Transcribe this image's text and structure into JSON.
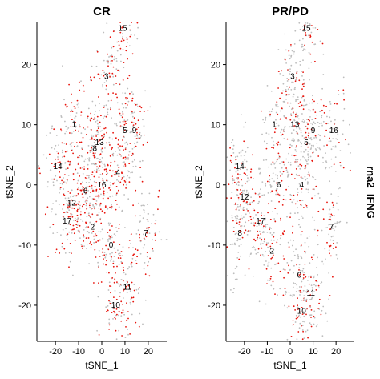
{
  "chart_data": [
    {
      "type": "scatter",
      "title": "CR",
      "xlabel": "tSNE_1",
      "ylabel": "tSNE_2",
      "xlim": [
        -28,
        28
      ],
      "ylim": [
        -26,
        27
      ],
      "xticks": [
        -20,
        -10,
        0,
        10,
        20
      ],
      "yticks": [
        -20,
        -10,
        0,
        10,
        20
      ],
      "xtick_labels": [
        "-20",
        "-10",
        "0",
        "10",
        "20"
      ],
      "ytick_labels": [
        "-20",
        "-10",
        "0",
        "10",
        "20"
      ],
      "point_colors": {
        "low": "#bdbdbd",
        "high": "#e8140c"
      },
      "clusters": [
        {
          "label": "0",
          "x": 4,
          "y": -10
        },
        {
          "label": "1",
          "x": -12,
          "y": 10
        },
        {
          "label": "2",
          "x": -4,
          "y": -7
        },
        {
          "label": "3",
          "x": 2,
          "y": 18
        },
        {
          "label": "4",
          "x": 7,
          "y": 2
        },
        {
          "label": "5",
          "x": 10,
          "y": 9
        },
        {
          "label": "6",
          "x": -7,
          "y": -1
        },
        {
          "label": "7",
          "x": 19,
          "y": -8
        },
        {
          "label": "8",
          "x": -3,
          "y": 6
        },
        {
          "label": "9",
          "x": 14,
          "y": 9
        },
        {
          "label": "10",
          "x": 6,
          "y": -20
        },
        {
          "label": "11",
          "x": 11,
          "y": -17
        },
        {
          "label": "12",
          "x": -13,
          "y": -3
        },
        {
          "label": "13",
          "x": -1,
          "y": 7
        },
        {
          "label": "14",
          "x": -19,
          "y": 3
        },
        {
          "label": "15",
          "x": 9,
          "y": 26
        },
        {
          "label": "16",
          "x": 0,
          "y": 0
        },
        {
          "label": "17",
          "x": -15,
          "y": -6
        }
      ]
    },
    {
      "type": "scatter",
      "title": "PR/PD",
      "xlabel": "tSNE_1",
      "ylabel": "tSNE_2",
      "xlim": [
        -28,
        28
      ],
      "ylim": [
        -26,
        27
      ],
      "xticks": [
        -20,
        -10,
        0,
        10,
        20
      ],
      "yticks": [
        -20,
        -10,
        0,
        10,
        20
      ],
      "xtick_labels": [
        "-20",
        "-10",
        "0",
        "10",
        "20"
      ],
      "ytick_labels": [
        "-20",
        "-10",
        "0",
        "10",
        "20"
      ],
      "point_colors": {
        "low": "#bdbdbd",
        "high": "#e8140c"
      },
      "clusters": [
        {
          "label": "0",
          "x": 4,
          "y": -15
        },
        {
          "label": "1",
          "x": -7,
          "y": 10
        },
        {
          "label": "2",
          "x": -8,
          "y": -11
        },
        {
          "label": "3",
          "x": 1,
          "y": 18
        },
        {
          "label": "4",
          "x": 5,
          "y": 0
        },
        {
          "label": "5",
          "x": 7,
          "y": 7
        },
        {
          "label": "6",
          "x": -5,
          "y": 0
        },
        {
          "label": "7",
          "x": 18,
          "y": -7
        },
        {
          "label": "8",
          "x": -22,
          "y": -8
        },
        {
          "label": "9",
          "x": 10,
          "y": 9
        },
        {
          "label": "10",
          "x": 5,
          "y": -21
        },
        {
          "label": "11",
          "x": 9,
          "y": -18
        },
        {
          "label": "12",
          "x": -20,
          "y": -2
        },
        {
          "label": "13",
          "x": 2,
          "y": 10
        },
        {
          "label": "14",
          "x": -22,
          "y": 3
        },
        {
          "label": "15",
          "x": 7,
          "y": 26
        },
        {
          "label": "16",
          "x": 19,
          "y": 9
        },
        {
          "label": "17",
          "x": -13,
          "y": -6
        }
      ]
    }
  ],
  "gene_label": "rna2_IFNG"
}
